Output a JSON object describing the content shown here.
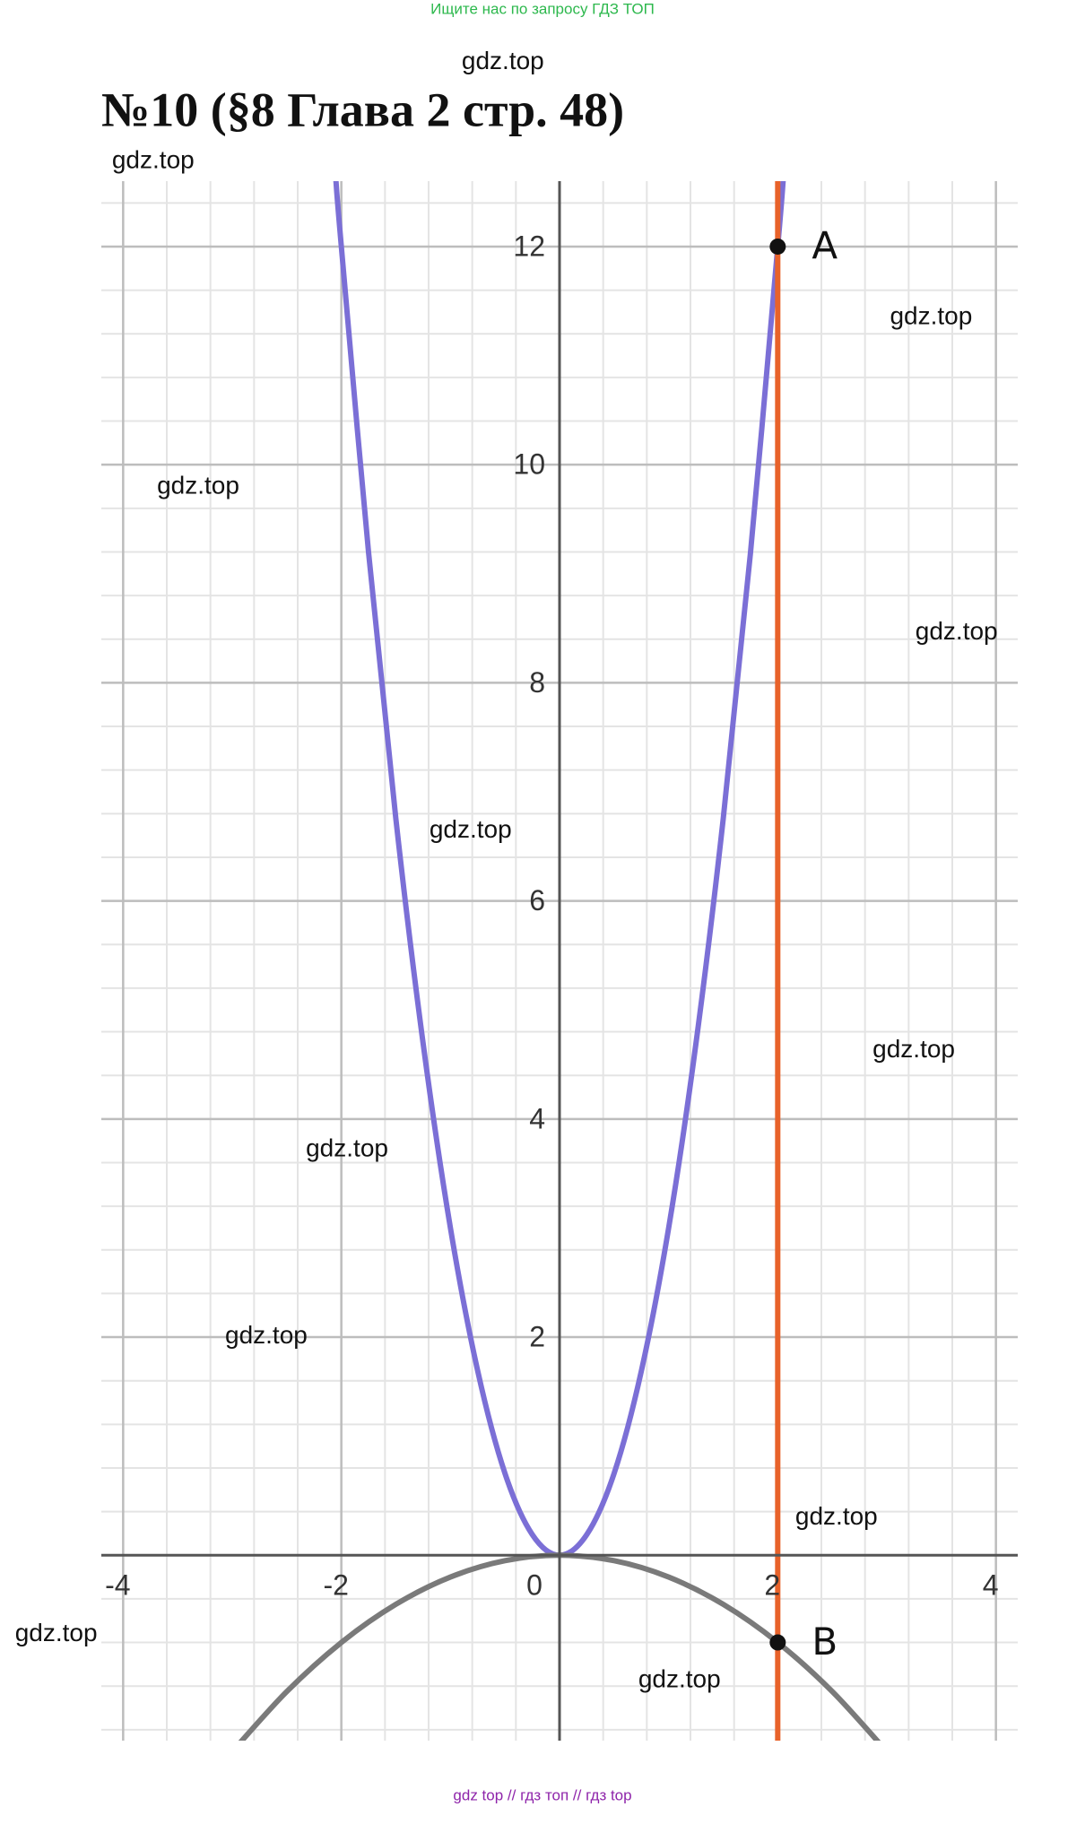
{
  "header": {
    "banner": "Ищите нас по запросу ГДЗ ТОП",
    "title": "№10 (§8 Глава 2  стр. 48)"
  },
  "watermarks": [
    "gdz.top",
    "gdz.top",
    "gdz.top",
    "gdz.top",
    "gdz.top",
    "gdz.top",
    "gdz.top",
    "gdz.top",
    "gdz.top",
    "gdz.top",
    "gdz.top",
    "gdz.top"
  ],
  "footer": "gdz top  //  гдз топ  //  гдз top",
  "chart_data": {
    "type": "line",
    "xlim": [
      -4.2,
      4.2
    ],
    "ylim": [
      -1.7,
      12.6
    ],
    "xticks": [
      -4,
      -2,
      0,
      2,
      4
    ],
    "yticks": [
      2,
      4,
      6,
      8,
      10,
      12
    ],
    "grid": true,
    "minor_grid_divisions": 5,
    "series": [
      {
        "color": "#7b6fd6",
        "x": [
          -2.05,
          -2,
          -1.75,
          -1.5,
          -1.25,
          -1,
          -0.75,
          -0.5,
          -0.25,
          0,
          0.25,
          0.5,
          0.75,
          1,
          1.25,
          1.5,
          1.75,
          2,
          2.05
        ],
        "values": [
          12.61,
          12,
          9.19,
          6.75,
          4.69,
          3,
          1.69,
          0.75,
          0.19,
          0,
          0.19,
          0.75,
          1.69,
          3,
          4.69,
          6.75,
          9.19,
          12,
          12.61
        ]
      },
      {
        "color": "#7a7a7a",
        "x": [
          -3,
          -2.5,
          -2,
          -1.5,
          -1,
          -0.5,
          0,
          0.5,
          1,
          1.5,
          2,
          2.5,
          3
        ],
        "values": [
          -1.8,
          -1.25,
          -0.8,
          -0.45,
          -0.2,
          -0.05,
          0,
          -0.05,
          -0.2,
          -0.45,
          -0.8,
          -1.25,
          -1.8
        ]
      },
      {
        "color": "#e8622a",
        "x": [
          2,
          2
        ],
        "values": [
          -1.7,
          12.6
        ]
      }
    ],
    "points": [
      {
        "label": "A",
        "x": 2,
        "y": 12
      },
      {
        "label": "B",
        "x": 2,
        "y": -0.8
      }
    ]
  }
}
